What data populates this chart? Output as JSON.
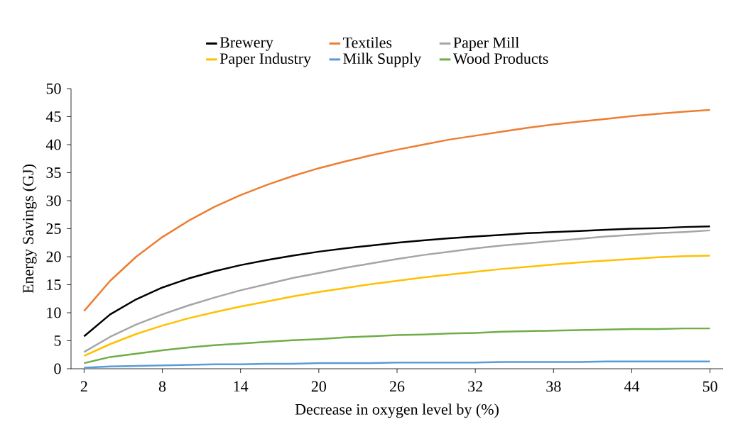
{
  "chart_data": {
    "type": "line",
    "xlabel": "Decrease in oxygen level by (%)",
    "ylabel": "Energy Savings (GJ)",
    "x": [
      2,
      4,
      6,
      8,
      10,
      12,
      14,
      16,
      18,
      20,
      22,
      24,
      26,
      28,
      30,
      32,
      34,
      36,
      38,
      40,
      42,
      44,
      46,
      48,
      50
    ],
    "xlim": [
      1,
      51
    ],
    "xticks": [
      2,
      8,
      14,
      20,
      26,
      32,
      38,
      44,
      50
    ],
    "ylim": [
      0,
      50
    ],
    "yticks": [
      0,
      5,
      10,
      15,
      20,
      25,
      30,
      35,
      40,
      45,
      50
    ],
    "grid": false,
    "legend": "top",
    "marker": "none",
    "line_style": "solid",
    "series": [
      {
        "name": "Brewery",
        "color": "#000000",
        "values": [
          5.8,
          9.7,
          12.4,
          14.5,
          16.1,
          17.4,
          18.5,
          19.4,
          20.2,
          20.9,
          21.5,
          22.0,
          22.5,
          22.9,
          23.3,
          23.6,
          23.9,
          24.2,
          24.4,
          24.6,
          24.8,
          25.0,
          25.1,
          25.3,
          25.4
        ]
      },
      {
        "name": "Textiles",
        "color": "#ed7d31",
        "values": [
          10.3,
          15.7,
          20.0,
          23.5,
          26.4,
          28.9,
          31.0,
          32.8,
          34.4,
          35.8,
          37.0,
          38.1,
          39.1,
          40.0,
          40.9,
          41.6,
          42.3,
          43.0,
          43.6,
          44.1,
          44.6,
          45.1,
          45.5,
          45.9,
          46.2
        ]
      },
      {
        "name": "Paper Mill",
        "color": "#a5a5a5",
        "values": [
          3.0,
          5.7,
          7.9,
          9.7,
          11.3,
          12.7,
          14.0,
          15.1,
          16.2,
          17.1,
          18.0,
          18.8,
          19.6,
          20.3,
          20.9,
          21.5,
          22.0,
          22.4,
          22.8,
          23.2,
          23.6,
          23.9,
          24.2,
          24.4,
          24.7
        ]
      },
      {
        "name": "Paper Industry",
        "color": "#ffc000",
        "values": [
          2.3,
          4.4,
          6.2,
          7.7,
          9.0,
          10.1,
          11.1,
          12.0,
          12.9,
          13.7,
          14.4,
          15.1,
          15.7,
          16.3,
          16.8,
          17.3,
          17.8,
          18.2,
          18.6,
          19.0,
          19.3,
          19.6,
          19.9,
          20.1,
          20.2
        ]
      },
      {
        "name": "Milk Supply",
        "color": "#5b9bd5",
        "values": [
          0.2,
          0.4,
          0.5,
          0.6,
          0.7,
          0.8,
          0.8,
          0.9,
          0.9,
          1.0,
          1.0,
          1.0,
          1.1,
          1.1,
          1.1,
          1.1,
          1.2,
          1.2,
          1.2,
          1.2,
          1.3,
          1.3,
          1.3,
          1.3,
          1.3
        ]
      },
      {
        "name": "Wood Products",
        "color": "#70ad47",
        "values": [
          1.0,
          2.1,
          2.7,
          3.3,
          3.8,
          4.2,
          4.5,
          4.8,
          5.1,
          5.3,
          5.6,
          5.8,
          6.0,
          6.1,
          6.3,
          6.4,
          6.6,
          6.7,
          6.8,
          6.9,
          7.0,
          7.1,
          7.1,
          7.2,
          7.2
        ]
      }
    ]
  }
}
